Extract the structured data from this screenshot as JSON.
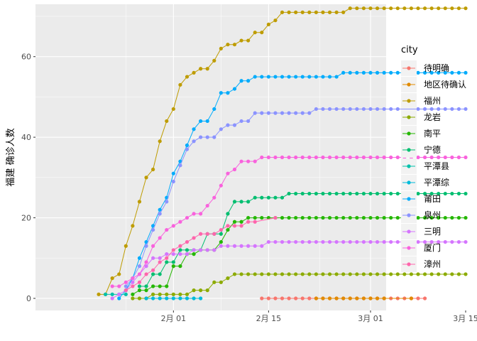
{
  "chart_data": {
    "type": "line",
    "xlabel": "",
    "ylabel": "福建 确诊人数",
    "ylim": [
      -3,
      73
    ],
    "xlim_days": [
      -20.3,
      31.3
    ],
    "x_ticks": [
      {
        "day": 0,
        "label": "2月 01"
      },
      {
        "day": 14,
        "label": "2月 15"
      },
      {
        "day": 29,
        "label": "3月 01"
      },
      {
        "day": 43,
        "label": "3月 15"
      }
    ],
    "y_ticks": [
      0,
      20,
      40,
      60
    ],
    "grid": true,
    "legend": {
      "title": "city",
      "position": "right"
    },
    "series": [
      {
        "name": "待明确",
        "color": "#F8766D",
        "x": [
          13,
          14,
          15,
          16,
          17,
          18,
          19,
          20,
          21,
          22,
          23,
          24,
          25,
          26,
          27,
          28,
          29,
          30,
          31,
          32,
          33,
          34,
          35,
          36,
          37
        ],
        "y": [
          0,
          0,
          0,
          0,
          0,
          0,
          0,
          0,
          0,
          0,
          0,
          0,
          0,
          0,
          0,
          0,
          0,
          0,
          0,
          0,
          0,
          0,
          0,
          0,
          0
        ]
      },
      {
        "name": "地区待确认",
        "color": "#E18A00",
        "x": [
          21,
          22,
          23,
          24,
          25,
          26,
          27,
          28,
          29,
          30,
          31,
          35
        ],
        "y": [
          0,
          0,
          0,
          0,
          0,
          0,
          0,
          0,
          0,
          0,
          0,
          0
        ]
      },
      {
        "name": "福州",
        "color": "#BE9C00",
        "x": [
          -11,
          -10,
          -9,
          -8,
          -7,
          -6,
          -5,
          -4,
          -3,
          -2,
          -1,
          0,
          1,
          2,
          3,
          4,
          5,
          6,
          7,
          8,
          9,
          10,
          11,
          12,
          13,
          14,
          15,
          16,
          17,
          18,
          19,
          20,
          21,
          22,
          23,
          24,
          25,
          26,
          27,
          28,
          29,
          30,
          31,
          32,
          33,
          34,
          35,
          36,
          37,
          38,
          39,
          40,
          41,
          42,
          43
        ],
        "y": [
          1,
          1,
          5,
          6,
          13,
          18,
          24,
          30,
          32,
          39,
          44,
          47,
          53,
          55,
          56,
          57,
          57,
          59,
          62,
          63,
          63,
          64,
          64,
          66,
          66,
          68,
          69,
          71,
          71,
          71,
          71,
          71,
          71,
          71,
          71,
          71,
          71,
          72,
          72,
          72,
          72,
          72,
          72,
          72,
          72,
          72,
          72,
          72,
          72,
          72,
          72,
          72,
          72,
          72,
          72
        ]
      },
      {
        "name": "龙岩",
        "color": "#8CAB00",
        "x": [
          -6,
          -5,
          -4,
          -3,
          -2,
          -1,
          0,
          1,
          2,
          3,
          4,
          5,
          6,
          7,
          8,
          9,
          10,
          11,
          12,
          13,
          14,
          15,
          16,
          17,
          18,
          19,
          20,
          21,
          22,
          23,
          24,
          25,
          26,
          27,
          28,
          29,
          30,
          31,
          32,
          33,
          34,
          35,
          36,
          37,
          38,
          39,
          40,
          41,
          42,
          43
        ],
        "y": [
          0,
          0,
          0,
          1,
          1,
          1,
          1,
          1,
          1,
          2,
          2,
          2,
          4,
          4,
          5,
          6,
          6,
          6,
          6,
          6,
          6,
          6,
          6,
          6,
          6,
          6,
          6,
          6,
          6,
          6,
          6,
          6,
          6,
          6,
          6,
          6,
          6,
          6,
          6,
          6,
          6,
          6,
          6,
          6,
          6,
          6,
          6,
          6,
          6,
          6
        ]
      },
      {
        "name": "南平",
        "color": "#24B700",
        "x": [
          -6,
          -5,
          -4,
          -3,
          -2,
          -1,
          0,
          1,
          2,
          3,
          4,
          5,
          6,
          7,
          8,
          9,
          10,
          11,
          12,
          13,
          14,
          15,
          16,
          17,
          18,
          19,
          20,
          21,
          22,
          23,
          24,
          25,
          26,
          27,
          28,
          29,
          30,
          31,
          32,
          33,
          34,
          35,
          36,
          37,
          38,
          39,
          40,
          41,
          42,
          43
        ],
        "y": [
          1,
          2,
          2,
          3,
          3,
          3,
          8,
          8,
          11,
          11,
          12,
          12,
          12,
          14,
          17,
          19,
          19,
          20,
          20,
          20,
          20,
          20,
          20,
          20,
          20,
          20,
          20,
          20,
          20,
          20,
          20,
          20,
          20,
          20,
          20,
          20,
          20,
          20,
          20,
          20,
          20,
          20,
          20,
          20,
          20,
          20,
          20,
          20,
          20,
          20
        ]
      },
      {
        "name": "宁德",
        "color": "#00BE70",
        "x": [
          -5,
          -4,
          -3,
          -2,
          -1,
          0,
          1,
          2,
          3,
          4,
          5,
          6,
          7,
          8,
          9,
          10,
          11,
          12,
          13,
          14,
          15,
          16,
          17,
          18,
          19,
          20,
          21,
          22,
          23,
          24,
          25,
          26,
          27,
          28,
          29,
          30,
          31,
          32,
          33,
          34,
          35,
          36,
          37,
          38,
          39,
          40,
          41,
          42,
          43
        ],
        "y": [
          3,
          3,
          6,
          6,
          9,
          9,
          12,
          12,
          12,
          12,
          16,
          16,
          16,
          21,
          24,
          24,
          24,
          25,
          25,
          25,
          25,
          25,
          26,
          26,
          26,
          26,
          26,
          26,
          26,
          26,
          26,
          26,
          26,
          26,
          26,
          26,
          26,
          26,
          26,
          26,
          26,
          26,
          26,
          26,
          26,
          26,
          26,
          26,
          26
        ]
      },
      {
        "name": "平潭县",
        "color": "#00C1AB",
        "x": [
          -10,
          -9,
          -8,
          -7
        ],
        "y": [
          1,
          1,
          1,
          1
        ]
      },
      {
        "name": "平潭综",
        "color": "#00BBDA",
        "x": [
          -4,
          -3,
          -2,
          -1,
          0,
          1,
          2,
          3,
          4
        ],
        "y": [
          0,
          0,
          0,
          0,
          0,
          0,
          0,
          0,
          0
        ]
      },
      {
        "name": "莆田",
        "color": "#00ACFC",
        "x": [
          -8,
          -7,
          -6,
          -5,
          -4,
          -3,
          -2,
          -1,
          0,
          1,
          2,
          3,
          4,
          5,
          6,
          7,
          8,
          9,
          10,
          11,
          12,
          13,
          14,
          15,
          16,
          17,
          18,
          19,
          20,
          21,
          22,
          23,
          24,
          25,
          26,
          27,
          28,
          29,
          30,
          31,
          32,
          33,
          34,
          35,
          36,
          37,
          38,
          39,
          40,
          41,
          42,
          43
        ],
        "y": [
          0,
          2,
          5,
          10,
          14,
          18,
          22,
          25,
          31,
          34,
          38,
          42,
          44,
          44,
          47,
          51,
          51,
          52,
          54,
          54,
          55,
          55,
          55,
          55,
          55,
          55,
          55,
          55,
          55,
          55,
          55,
          55,
          55,
          56,
          56,
          56,
          56,
          56,
          56,
          56,
          56,
          56,
          56,
          56,
          56,
          56,
          56,
          56,
          56,
          56,
          56,
          56
        ]
      },
      {
        "name": "泉州",
        "color": "#8B93FF",
        "x": [
          -7,
          -6,
          -5,
          -4,
          -3,
          -2,
          -1,
          0,
          1,
          2,
          3,
          4,
          5,
          6,
          7,
          8,
          9,
          10,
          11,
          12,
          13,
          14,
          15,
          16,
          17,
          18,
          19,
          20,
          21,
          22,
          23,
          24,
          25,
          26,
          27,
          28,
          29,
          30,
          31,
          32,
          33,
          34,
          35,
          36,
          37,
          38,
          39,
          40,
          41,
          42,
          43
        ],
        "y": [
          3,
          5,
          8,
          13,
          17,
          21,
          24,
          29,
          33,
          37,
          39,
          40,
          40,
          40,
          42,
          43,
          43,
          44,
          44,
          46,
          46,
          46,
          46,
          46,
          46,
          46,
          46,
          46,
          47,
          47,
          47,
          47,
          47,
          47,
          47,
          47,
          47,
          47,
          47,
          47,
          47,
          47,
          47,
          47,
          47,
          47,
          47,
          47,
          47,
          47,
          47
        ]
      },
      {
        "name": "三明",
        "color": "#D575FE",
        "x": [
          -9,
          -8,
          -7,
          -6,
          -5,
          -4,
          -3,
          -2,
          -1,
          0,
          1,
          2,
          3,
          4,
          5,
          6,
          7,
          8,
          9,
          10,
          11,
          12,
          13,
          14,
          15,
          16,
          17,
          18,
          19,
          20,
          21,
          22,
          23,
          24,
          25,
          26,
          27,
          28,
          29,
          30,
          31,
          32,
          33,
          34,
          35,
          36,
          37,
          38,
          39,
          40,
          41,
          42,
          43
        ],
        "y": [
          0,
          1,
          2,
          4,
          6,
          8,
          10,
          10,
          11,
          11,
          11,
          11,
          12,
          12,
          12,
          12,
          13,
          13,
          13,
          13,
          13,
          13,
          13,
          14,
          14,
          14,
          14,
          14,
          14,
          14,
          14,
          14,
          14,
          14,
          14,
          14,
          14,
          14,
          14,
          14,
          14,
          14,
          14,
          14,
          14,
          14,
          14,
          14,
          14,
          14,
          14,
          14,
          14
        ]
      },
      {
        "name": "厦门",
        "color": "#F962DD",
        "x": [
          -9,
          -8,
          -7,
          -6,
          -5,
          -4,
          -3,
          -2,
          -1,
          0,
          1,
          2,
          3,
          4,
          5,
          6,
          7,
          8,
          9,
          10,
          11,
          12,
          13,
          14,
          15,
          16,
          17,
          18,
          19,
          20,
          21,
          22,
          23,
          24,
          25,
          26,
          27,
          28,
          29,
          30,
          31,
          32,
          33,
          34,
          35,
          36,
          37,
          38,
          39,
          40,
          41,
          42,
          43
        ],
        "y": [
          3,
          3,
          4,
          5,
          6,
          9,
          13,
          15,
          17,
          18,
          19,
          20,
          21,
          21,
          23,
          25,
          28,
          31,
          32,
          34,
          34,
          34,
          35,
          35,
          35,
          35,
          35,
          35,
          35,
          35,
          35,
          35,
          35,
          35,
          35,
          35,
          35,
          35,
          35,
          35,
          35,
          35,
          35,
          35,
          35,
          35,
          35,
          35,
          35,
          35,
          35,
          35,
          35
        ]
      },
      {
        "name": "漳州",
        "color": "#FF65AC",
        "x": [
          -7,
          -6,
          -5,
          -4,
          -3,
          -2,
          -1,
          0,
          1,
          2,
          3,
          4,
          5,
          6,
          7,
          8,
          9,
          10,
          11,
          12,
          15
        ],
        "y": [
          2,
          3,
          4,
          6,
          7,
          9,
          10,
          12,
          13,
          14,
          15,
          16,
          16,
          16,
          17,
          18,
          18,
          18,
          19,
          19,
          20
        ]
      }
    ]
  }
}
